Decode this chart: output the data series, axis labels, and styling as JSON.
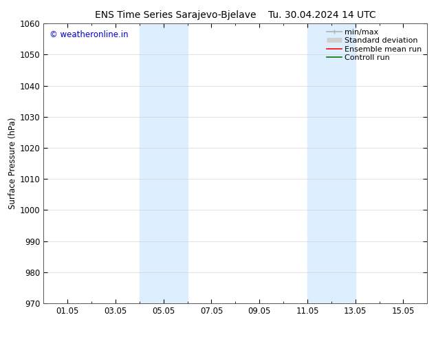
{
  "title_left": "ENS Time Series Sarajevo-Bjelave",
  "title_right": "Tu. 30.04.2024 14 UTC",
  "ylabel": "Surface Pressure (hPa)",
  "ylim": [
    970,
    1060
  ],
  "yticks": [
    970,
    980,
    990,
    1000,
    1010,
    1020,
    1030,
    1040,
    1050,
    1060
  ],
  "xtick_labels": [
    "01.05",
    "03.05",
    "05.05",
    "07.05",
    "09.05",
    "11.05",
    "13.05",
    "15.05"
  ],
  "xtick_positions": [
    1,
    3,
    5,
    7,
    9,
    11,
    13,
    15
  ],
  "xlim": [
    0,
    16
  ],
  "shaded_bands": [
    {
      "x_start": 4.0,
      "x_end": 6.0
    },
    {
      "x_start": 11.0,
      "x_end": 13.0
    }
  ],
  "shade_color": "#ddeeff",
  "background_color": "#ffffff",
  "watermark_text": "© weatheronline.in",
  "watermark_color": "#0000cc",
  "legend_items": [
    {
      "label": "min/max",
      "color": "#b0b0b0",
      "lw": 1.2
    },
    {
      "label": "Standard deviation",
      "color": "#d0d0d0",
      "lw": 5
    },
    {
      "label": "Ensemble mean run",
      "color": "#ff0000",
      "lw": 1.2
    },
    {
      "label": "Controll run",
      "color": "#007700",
      "lw": 1.2
    }
  ],
  "grid_color": "#cccccc",
  "font_size_title": 10,
  "font_size_axis": 8.5,
  "font_size_ticks": 8.5,
  "font_size_legend": 8,
  "font_size_watermark": 8.5
}
